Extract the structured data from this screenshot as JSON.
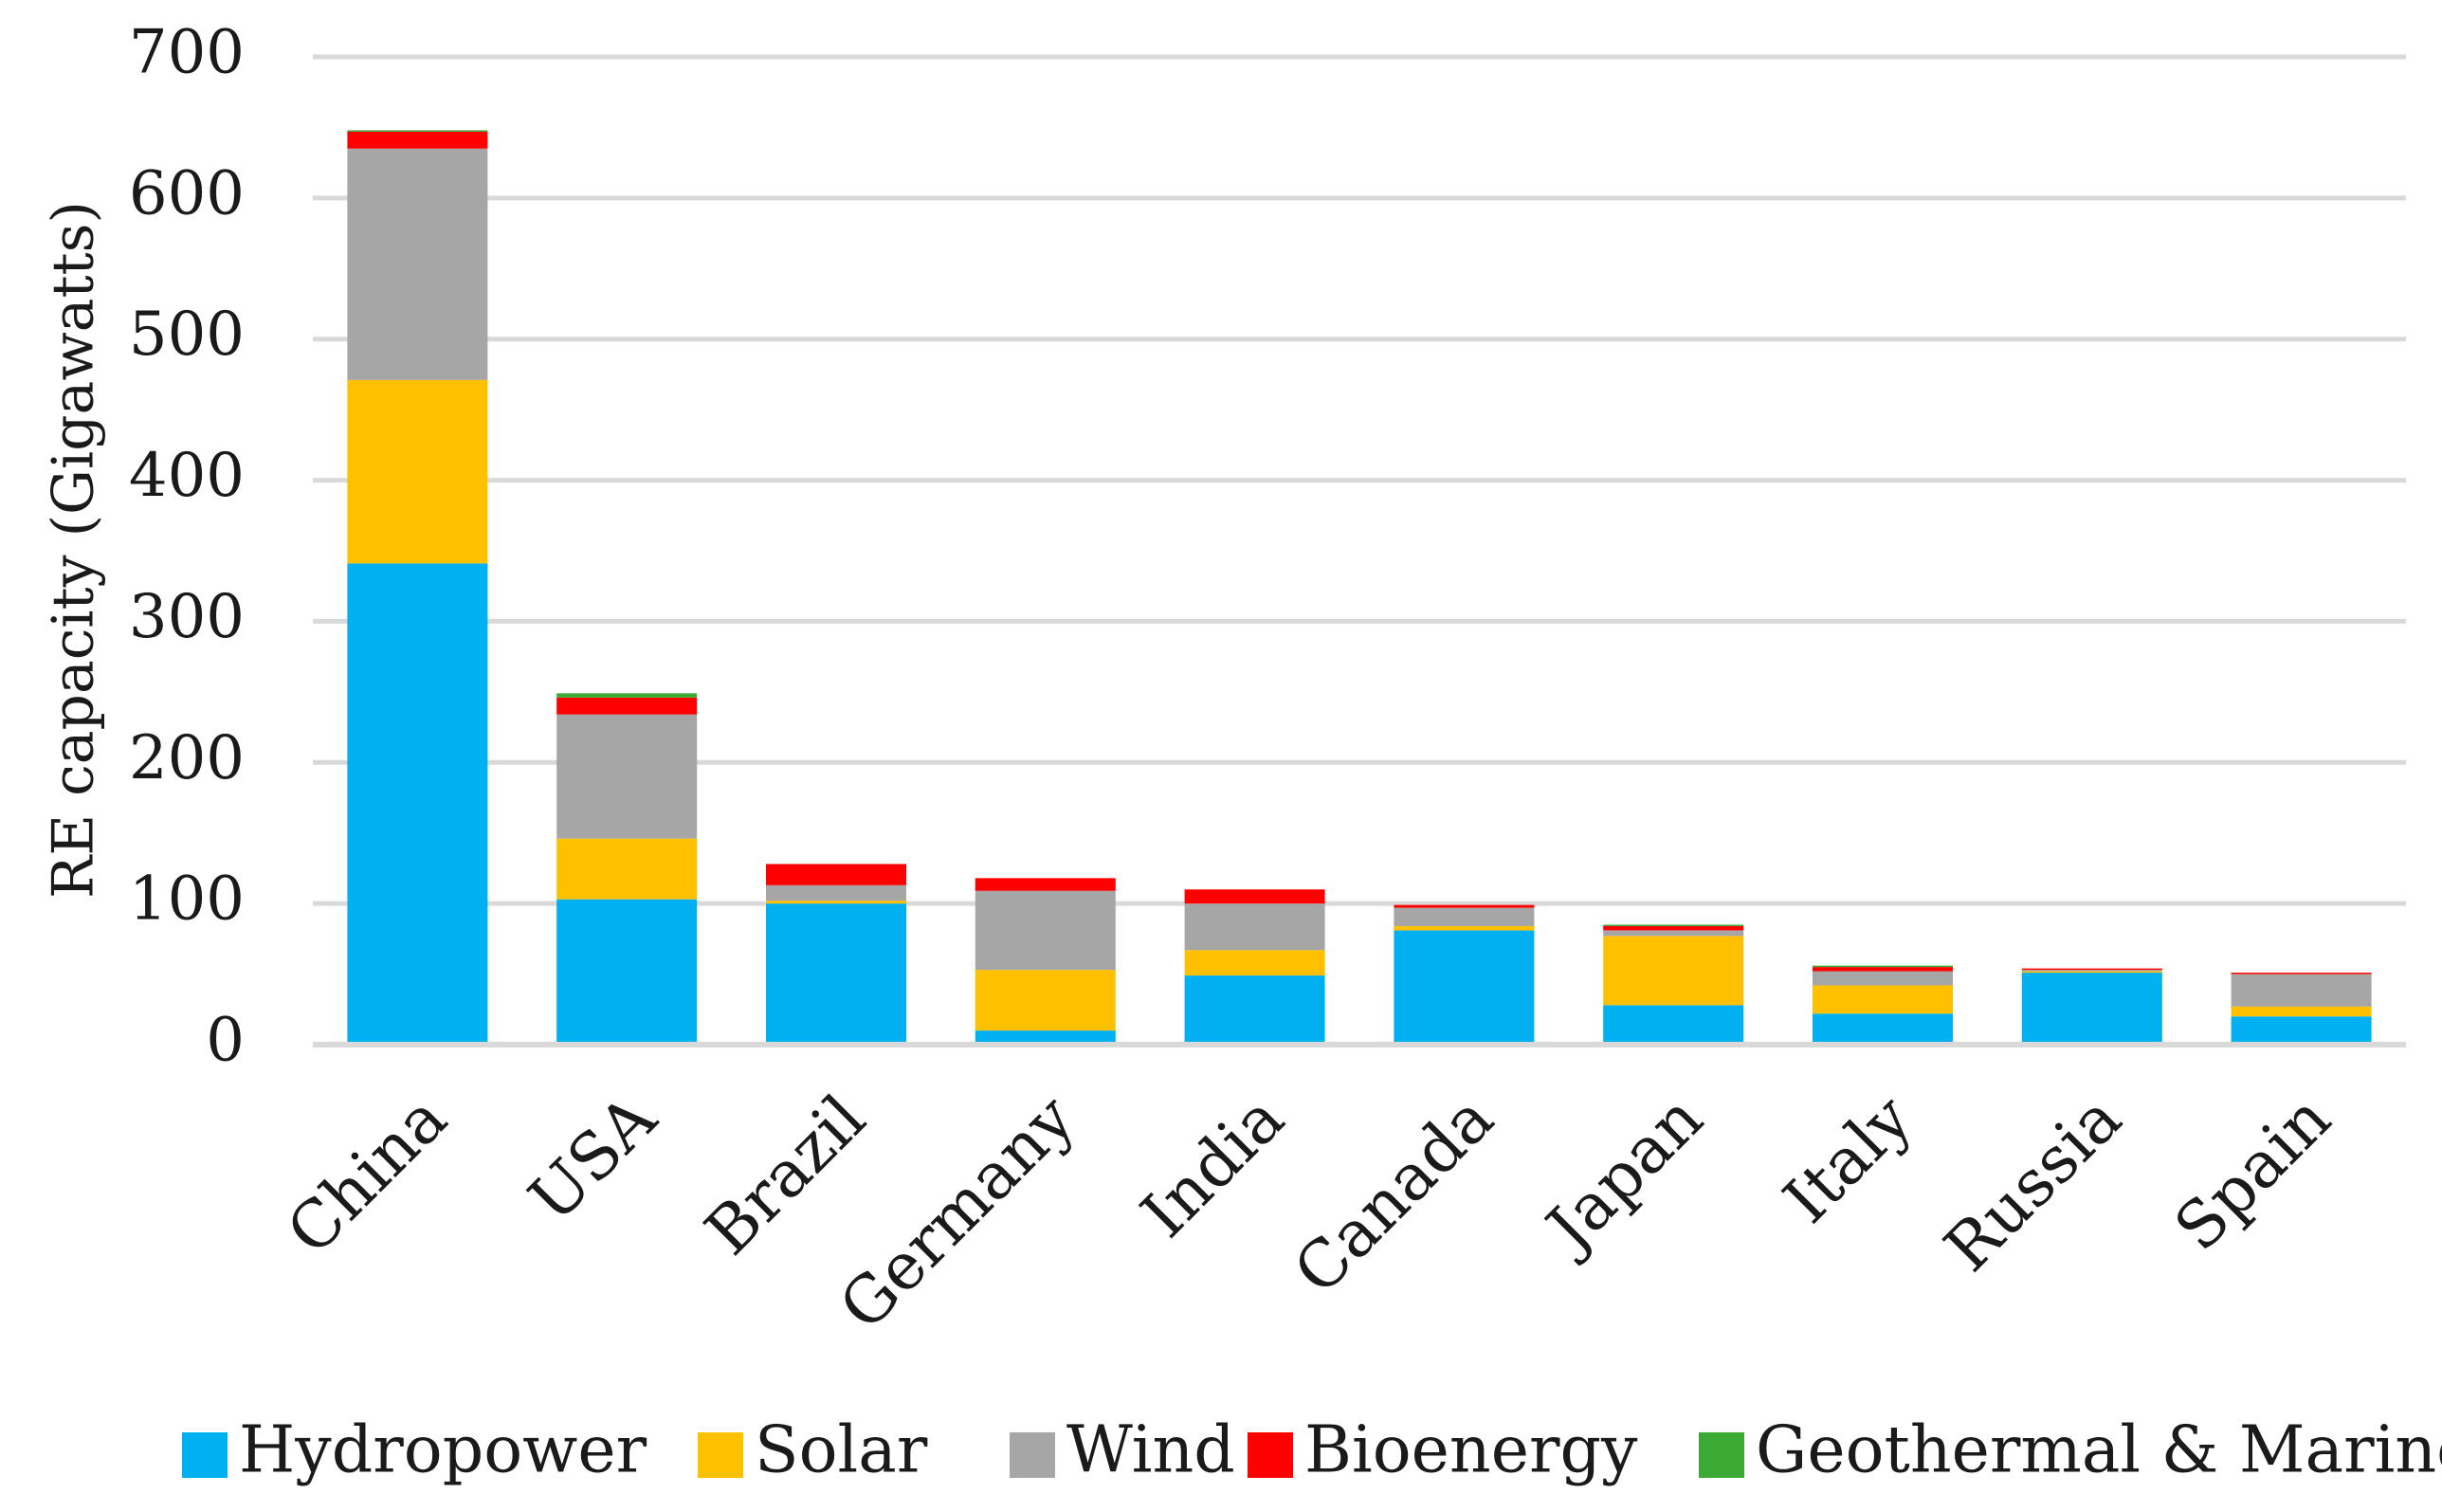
{
  "chart_data": {
    "type": "bar",
    "stacked": true,
    "title": "",
    "xlabel": "",
    "ylabel": "RE capacity (Gigawatts)",
    "ylim": [
      0,
      700
    ],
    "yticks": [
      "0",
      "100",
      "200",
      "300",
      "400",
      "500",
      "600",
      "700"
    ],
    "grid": true,
    "legend_position": "bottom",
    "categories": [
      "China",
      "USA",
      "Brazil",
      "Germany",
      "India",
      "Canada",
      "Japan",
      "Italy",
      "Russia",
      "Spain"
    ],
    "series": [
      {
        "name": "Hydropower",
        "color": "#00b0f0",
        "values": [
          341,
          103,
          100,
          10,
          49,
          81,
          28,
          22,
          51,
          20
        ]
      },
      {
        "name": "Solar",
        "color": "#ffc000",
        "values": [
          130,
          43,
          2,
          43,
          18,
          3,
          49,
          20,
          1,
          7
        ]
      },
      {
        "name": "Wind",
        "color": "#a6a6a6",
        "values": [
          164,
          88,
          11,
          56,
          33,
          13,
          4,
          10,
          1,
          23
        ]
      },
      {
        "name": "Bioenergy",
        "color": "#ff0000",
        "values": [
          12,
          12,
          15,
          9,
          10,
          2,
          3,
          3,
          1,
          1
        ]
      },
      {
        "name": "Geothermal & Marine",
        "color": "#3aaa35",
        "values": [
          1,
          3,
          0,
          0,
          0,
          0,
          1,
          1,
          0,
          0
        ]
      }
    ]
  }
}
